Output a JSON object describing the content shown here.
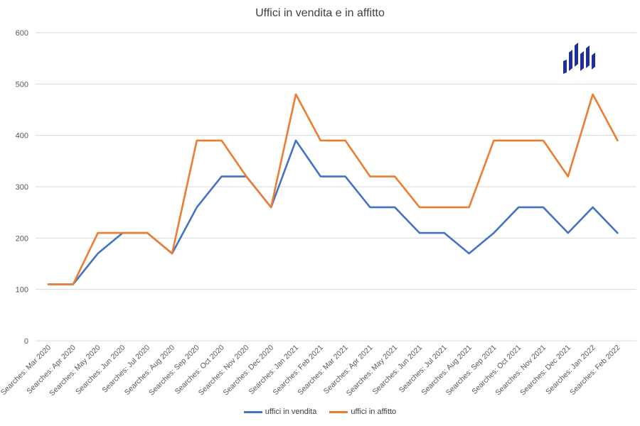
{
  "chart_data": {
    "type": "line",
    "title": "Uffici in vendita e in affitto",
    "xlabel": "",
    "ylabel": "",
    "ylim": [
      0,
      600
    ],
    "yticks": [
      0,
      100,
      200,
      300,
      400,
      500,
      600
    ],
    "grid": true,
    "legend_position": "bottom",
    "categories": [
      "Searches: Mar 2020",
      "Searches: Apr 2020",
      "Searches: May 2020",
      "Searches: Jun 2020",
      "Searches: Jul 2020",
      "Searches: Aug 2020",
      "Searches: Sep 2020",
      "Searches: Oct 2020",
      "Searches: Nov 2020",
      "Searches: Dec 2020",
      "Searches: Jan 2021",
      "Searches: Feb 2021",
      "Searches: Mar 2021",
      "Searches: Apr 2021",
      "Searches: May 2021",
      "Searches: Jun 2021",
      "Searches: Jul 2021",
      "Searches: Aug 2021",
      "Searches: Sep 2021",
      "Searches: Oct 2021",
      "Searches: Nov 2021",
      "Searches: Dec 2021",
      "Searches: Jan 2022",
      "Searches: Feb 2022"
    ],
    "series": [
      {
        "name": "uffici in vendita",
        "color": "#4472C4",
        "values": [
          110,
          110,
          170,
          210,
          210,
          170,
          260,
          320,
          320,
          260,
          390,
          320,
          320,
          260,
          260,
          210,
          210,
          170,
          210,
          260,
          260,
          210,
          260,
          210
        ]
      },
      {
        "name": "uffici in affitto",
        "color": "#ED7D31",
        "values": [
          110,
          110,
          210,
          210,
          210,
          170,
          390,
          390,
          320,
          260,
          480,
          390,
          390,
          320,
          320,
          260,
          260,
          260,
          390,
          390,
          390,
          320,
          480,
          390
        ]
      }
    ]
  },
  "logo": {
    "icon": "bar-chart-logo-icon",
    "color": "#1F2FA0"
  }
}
